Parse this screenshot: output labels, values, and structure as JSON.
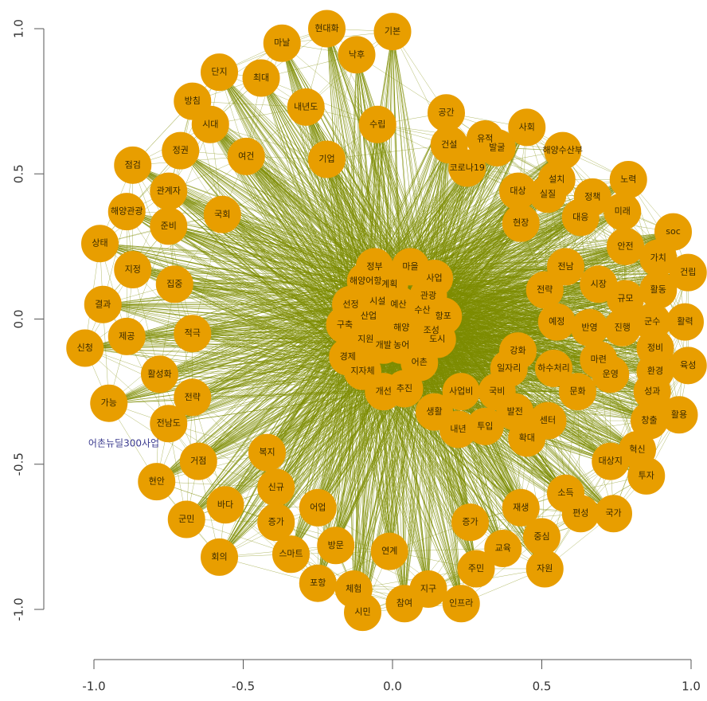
{
  "chart_data": {
    "type": "network",
    "xlim": [
      -1,
      1
    ],
    "ylim": [
      -1,
      1
    ],
    "xticks": [
      {
        "value": -1,
        "label": "-1.0"
      },
      -0.5,
      {
        "value": 0,
        "label": "0.0"
      },
      0.5,
      {
        "value": 1,
        "label": "1.0"
      }
    ],
    "yticks": [
      {
        "value": -1,
        "label": "-1.0"
      },
      -0.5,
      {
        "value": 0,
        "label": "0.0"
      },
      0.5,
      {
        "value": 1,
        "label": "1.0"
      }
    ],
    "node_color": "#e89e00",
    "edge_color": "#7d8c00",
    "nodes": [
      {
        "label": "현대화",
        "x": -0.22,
        "y": 1.0
      },
      {
        "label": "기본",
        "x": 0.0,
        "y": 0.99
      },
      {
        "label": "마날",
        "x": -0.37,
        "y": 0.95
      },
      {
        "label": "낙후",
        "x": -0.12,
        "y": 0.91
      },
      {
        "label": "단지",
        "x": -0.58,
        "y": 0.85
      },
      {
        "label": "최대",
        "x": -0.44,
        "y": 0.83
      },
      {
        "label": "방침",
        "x": -0.67,
        "y": 0.75
      },
      {
        "label": "내년도",
        "x": -0.29,
        "y": 0.73
      },
      {
        "label": "시대",
        "x": -0.61,
        "y": 0.67
      },
      {
        "label": "수립",
        "x": -0.05,
        "y": 0.67
      },
      {
        "label": "공간",
        "x": 0.18,
        "y": 0.71
      },
      {
        "label": "사회",
        "x": 0.45,
        "y": 0.66
      },
      {
        "label": "유적",
        "x": 0.31,
        "y": 0.62
      },
      {
        "label": "발굴",
        "x": 0.35,
        "y": 0.59
      },
      {
        "label": "건설",
        "x": 0.19,
        "y": 0.6
      },
      {
        "label": "해양수산부",
        "x": 0.57,
        "y": 0.58
      },
      {
        "label": "정권",
        "x": -0.71,
        "y": 0.58
      },
      {
        "label": "여건",
        "x": -0.49,
        "y": 0.56
      },
      {
        "label": "기업",
        "x": -0.22,
        "y": 0.55
      },
      {
        "label": "점검",
        "x": -0.87,
        "y": 0.53
      },
      {
        "label": "코로나19",
        "x": 0.25,
        "y": 0.52
      },
      {
        "label": "노력",
        "x": 0.79,
        "y": 0.48
      },
      {
        "label": "관계자",
        "x": -0.75,
        "y": 0.44
      },
      {
        "label": "설치",
        "x": 0.55,
        "y": 0.48
      },
      {
        "label": "대상",
        "x": 0.42,
        "y": 0.44
      },
      {
        "label": "실질",
        "x": 0.52,
        "y": 0.43
      },
      {
        "label": "정책",
        "x": 0.67,
        "y": 0.42
      },
      {
        "label": "해양관광",
        "x": -0.89,
        "y": 0.37
      },
      {
        "label": "미래",
        "x": 0.77,
        "y": 0.37
      },
      {
        "label": "국회",
        "x": -0.57,
        "y": 0.36
      },
      {
        "label": "준비",
        "x": -0.75,
        "y": 0.32
      },
      {
        "label": "현장",
        "x": 0.43,
        "y": 0.33
      },
      {
        "label": "대응",
        "x": 0.63,
        "y": 0.35
      },
      {
        "label": "soc",
        "x": 0.94,
        "y": 0.3
      },
      {
        "label": "상태",
        "x": -0.98,
        "y": 0.26
      },
      {
        "label": "안전",
        "x": 0.78,
        "y": 0.25
      },
      {
        "label": "지정",
        "x": -0.87,
        "y": 0.17
      },
      {
        "label": "가치",
        "x": 0.89,
        "y": 0.21
      },
      {
        "label": "건립",
        "x": 0.99,
        "y": 0.16
      },
      {
        "label": "집중",
        "x": -0.73,
        "y": 0.12
      },
      {
        "label": "전남",
        "x": 0.58,
        "y": 0.18
      },
      {
        "label": "활동",
        "x": 0.89,
        "y": 0.1
      },
      {
        "label": "전략",
        "x": 0.51,
        "y": 0.1
      },
      {
        "label": "시장",
        "x": 0.69,
        "y": 0.12
      },
      {
        "label": "규모",
        "x": 0.78,
        "y": 0.07
      },
      {
        "label": "결과",
        "x": -0.97,
        "y": 0.05
      },
      {
        "label": "활력",
        "x": 0.98,
        "y": -0.01
      },
      {
        "label": "예정",
        "x": 0.55,
        "y": -0.01
      },
      {
        "label": "반영",
        "x": 0.66,
        "y": -0.03
      },
      {
        "label": "진행",
        "x": 0.77,
        "y": -0.03
      },
      {
        "label": "군수",
        "x": 0.87,
        "y": -0.01
      },
      {
        "label": "제공",
        "x": -0.89,
        "y": -0.06
      },
      {
        "label": "적극",
        "x": -0.67,
        "y": -0.05
      },
      {
        "label": "신청",
        "x": -1.03,
        "y": -0.1
      },
      {
        "label": "강화",
        "x": 0.42,
        "y": -0.11
      },
      {
        "label": "정비",
        "x": 0.88,
        "y": -0.1
      },
      {
        "label": "마련",
        "x": 0.69,
        "y": -0.14
      },
      {
        "label": "하수처리",
        "x": 0.54,
        "y": -0.17
      },
      {
        "label": "육성",
        "x": 0.99,
        "y": -0.16
      },
      {
        "label": "환경",
        "x": 0.88,
        "y": -0.18
      },
      {
        "label": "운영",
        "x": 0.73,
        "y": -0.19
      },
      {
        "label": "활성화",
        "x": -0.78,
        "y": -0.19
      },
      {
        "label": "일자리",
        "x": 0.39,
        "y": -0.17
      },
      {
        "label": "국비",
        "x": 0.35,
        "y": -0.25
      },
      {
        "label": "문화",
        "x": 0.62,
        "y": -0.25
      },
      {
        "label": "성과",
        "x": 0.87,
        "y": -0.25
      },
      {
        "label": "가능",
        "x": -0.95,
        "y": -0.29
      },
      {
        "label": "전략",
        "x": -0.67,
        "y": -0.27
      },
      {
        "label": "사업비",
        "x": 0.23,
        "y": -0.25
      },
      {
        "label": "발전",
        "x": 0.41,
        "y": -0.32
      },
      {
        "label": "센터",
        "x": 0.52,
        "y": -0.35
      },
      {
        "label": "생활",
        "x": 0.14,
        "y": -0.32
      },
      {
        "label": "창출",
        "x": 0.86,
        "y": -0.35
      },
      {
        "label": "활용",
        "x": 0.96,
        "y": -0.33
      },
      {
        "label": "전남도",
        "x": -0.75,
        "y": -0.36
      },
      {
        "label": "내년",
        "x": 0.22,
        "y": -0.38
      },
      {
        "label": "투입",
        "x": 0.31,
        "y": -0.37
      },
      {
        "label": "확대",
        "x": 0.45,
        "y": -0.41
      },
      {
        "label": "혁신",
        "x": 0.82,
        "y": -0.45
      },
      {
        "label": "복지",
        "x": -0.42,
        "y": -0.46
      },
      {
        "label": "대상지",
        "x": 0.73,
        "y": -0.49
      },
      {
        "label": "투자",
        "x": 0.85,
        "y": -0.54
      },
      {
        "label": "거점",
        "x": -0.65,
        "y": -0.49
      },
      {
        "label": "현안",
        "x": -0.79,
        "y": -0.56
      },
      {
        "label": "신규",
        "x": -0.39,
        "y": -0.58
      },
      {
        "label": "소득",
        "x": 0.58,
        "y": -0.6
      },
      {
        "label": "재생",
        "x": 0.43,
        "y": -0.65
      },
      {
        "label": "어업",
        "x": -0.25,
        "y": -0.65
      },
      {
        "label": "바다",
        "x": -0.56,
        "y": -0.64
      },
      {
        "label": "편성",
        "x": 0.63,
        "y": -0.67
      },
      {
        "label": "국가",
        "x": 0.74,
        "y": -0.67
      },
      {
        "label": "군민",
        "x": -0.69,
        "y": -0.69
      },
      {
        "label": "증가",
        "x": -0.39,
        "y": -0.7
      },
      {
        "label": "증가",
        "x": 0.26,
        "y": -0.7
      },
      {
        "label": "중심",
        "x": 0.5,
        "y": -0.75
      },
      {
        "label": "방문",
        "x": -0.19,
        "y": -0.78
      },
      {
        "label": "스마트",
        "x": -0.34,
        "y": -0.81
      },
      {
        "label": "연계",
        "x": -0.01,
        "y": -0.8
      },
      {
        "label": "교육",
        "x": 0.37,
        "y": -0.79
      },
      {
        "label": "회의",
        "x": -0.58,
        "y": -0.82
      },
      {
        "label": "주민",
        "x": 0.28,
        "y": -0.86
      },
      {
        "label": "자원",
        "x": 0.51,
        "y": -0.86
      },
      {
        "label": "포항",
        "x": -0.25,
        "y": -0.91
      },
      {
        "label": "체험",
        "x": -0.13,
        "y": -0.93
      },
      {
        "label": "지구",
        "x": 0.12,
        "y": -0.93
      },
      {
        "label": "참여",
        "x": 0.04,
        "y": -0.98
      },
      {
        "label": "인프라",
        "x": 0.23,
        "y": -0.98
      },
      {
        "label": "시민",
        "x": -0.1,
        "y": -1.01
      },
      {
        "label": "정부",
        "x": -0.06,
        "y": 0.18
      },
      {
        "label": "마을",
        "x": 0.06,
        "y": 0.18
      },
      {
        "label": "사업",
        "x": 0.14,
        "y": 0.14
      },
      {
        "label": "해양어항",
        "x": -0.09,
        "y": 0.13
      },
      {
        "label": "계획",
        "x": -0.01,
        "y": 0.12
      },
      {
        "label": "관광",
        "x": 0.12,
        "y": 0.08
      },
      {
        "label": "선정",
        "x": -0.14,
        "y": 0.05
      },
      {
        "label": "시설",
        "x": -0.05,
        "y": 0.06
      },
      {
        "label": "예산",
        "x": 0.02,
        "y": 0.05
      },
      {
        "label": "수산",
        "x": 0.1,
        "y": 0.03
      },
      {
        "label": "항포",
        "x": 0.17,
        "y": 0.01
      },
      {
        "label": "구축",
        "x": -0.16,
        "y": -0.02
      },
      {
        "label": "산업",
        "x": -0.08,
        "y": 0.01
      },
      {
        "label": "해양",
        "x": 0.03,
        "y": -0.03
      },
      {
        "label": "조성",
        "x": 0.13,
        "y": -0.04
      },
      {
        "label": "지원",
        "x": -0.09,
        "y": -0.07
      },
      {
        "label": "개발",
        "x": -0.03,
        "y": -0.09
      },
      {
        "label": "농어",
        "x": 0.03,
        "y": -0.09
      },
      {
        "label": "도시",
        "x": 0.15,
        "y": -0.07
      },
      {
        "label": "경제",
        "x": -0.15,
        "y": -0.13
      },
      {
        "label": "어촌",
        "x": 0.09,
        "y": -0.15
      },
      {
        "label": "지자체",
        "x": -0.1,
        "y": -0.18
      },
      {
        "label": "추진",
        "x": 0.04,
        "y": -0.24
      },
      {
        "label": "개선",
        "x": -0.03,
        "y": -0.25
      }
    ],
    "annotations": [
      {
        "text": "어촌뉴딜300사업",
        "x": -0.9,
        "y": -0.43,
        "color": "#3b3b8f"
      }
    ]
  }
}
